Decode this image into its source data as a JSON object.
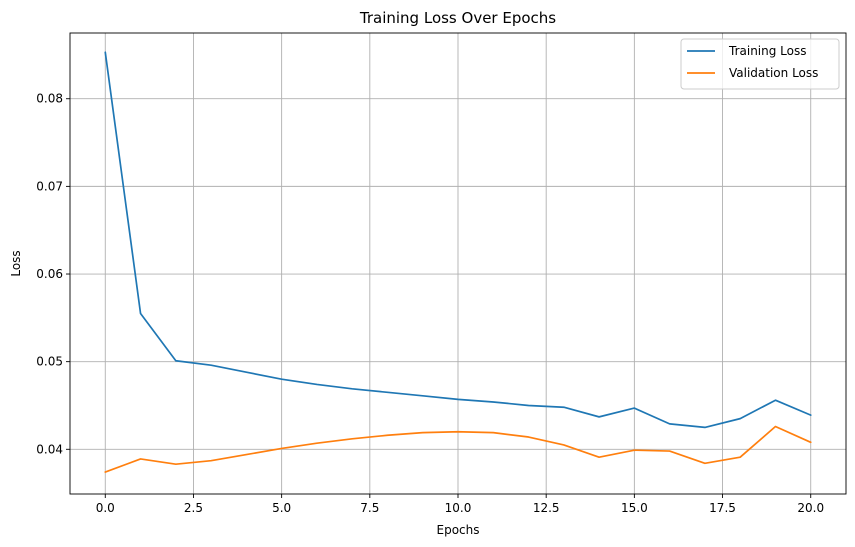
{
  "chart_data": {
    "type": "line",
    "title": "Training Loss Over Epochs",
    "xlabel": "Epochs",
    "ylabel": "Loss",
    "xlim": [
      -1.0,
      21.0
    ],
    "ylim": [
      0.0349,
      0.0875
    ],
    "xticks": [
      0.0,
      2.5,
      5.0,
      7.5,
      10.0,
      12.5,
      15.0,
      17.5,
      20.0
    ],
    "xtick_labels": [
      "0.0",
      "2.5",
      "5.0",
      "7.5",
      "10.0",
      "12.5",
      "15.0",
      "17.5",
      "20.0"
    ],
    "yticks": [
      0.04,
      0.05,
      0.06,
      0.07,
      0.08
    ],
    "ytick_labels": [
      "0.04",
      "0.05",
      "0.06",
      "0.07",
      "0.08"
    ],
    "grid": true,
    "legend_position": "top-right",
    "x": [
      0,
      1,
      2,
      3,
      4,
      5,
      6,
      7,
      8,
      9,
      10,
      11,
      12,
      13,
      14,
      15,
      16,
      17,
      18,
      19,
      20
    ],
    "series": [
      {
        "name": "Training Loss",
        "color": "#1f77b4",
        "values": [
          0.0853,
          0.0555,
          0.0501,
          0.0496,
          0.0488,
          0.048,
          0.0474,
          0.0469,
          0.0465,
          0.0461,
          0.0457,
          0.0454,
          0.045,
          0.0448,
          0.0437,
          0.0447,
          0.0429,
          0.0425,
          0.0435,
          0.0456,
          0.0439
        ]
      },
      {
        "name": "Validation Loss",
        "color": "#ff7f0e",
        "values": [
          0.0374,
          0.0389,
          0.0383,
          0.0387,
          0.0394,
          0.0401,
          0.0407,
          0.0412,
          0.0416,
          0.0419,
          0.042,
          0.0419,
          0.0414,
          0.0405,
          0.0391,
          0.0399,
          0.0398,
          0.0384,
          0.0391,
          0.0426,
          0.0408
        ]
      }
    ]
  }
}
